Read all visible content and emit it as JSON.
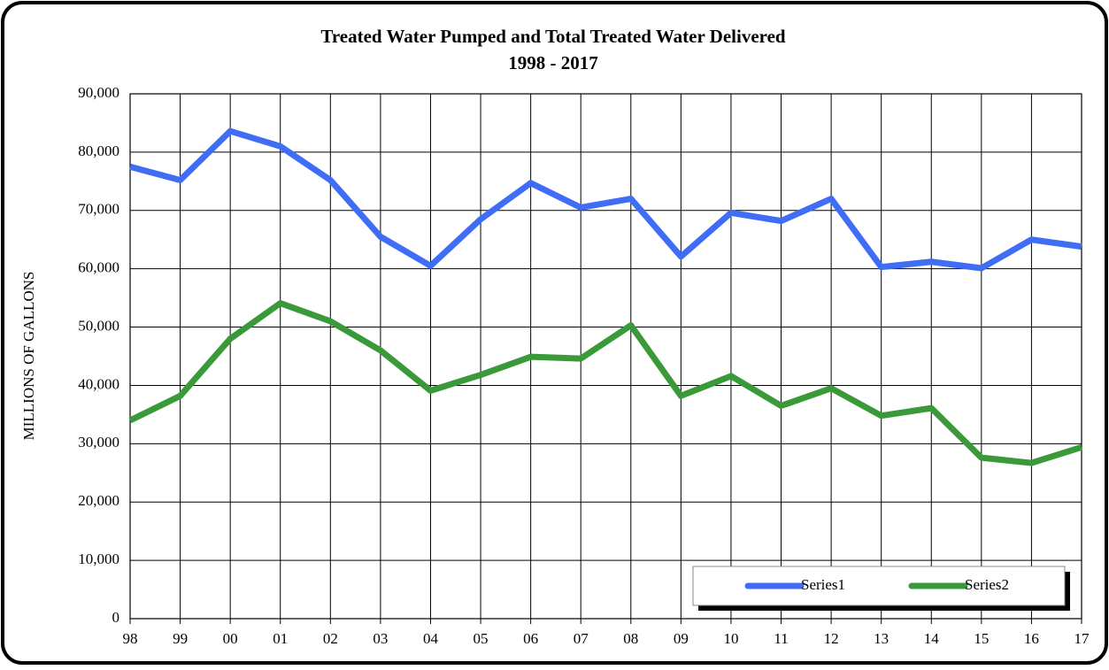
{
  "chart_data": {
    "type": "line",
    "title": "Treated Water Pumped and Total Treated Water Delivered",
    "subtitle": "1998 - 2017",
    "y_label": "MILLIONS OF GALLONS",
    "categories": [
      "98",
      "99",
      "00",
      "01",
      "02",
      "03",
      "04",
      "05",
      "06",
      "07",
      "08",
      "09",
      "10",
      "11",
      "12",
      "13",
      "14",
      "15",
      "16",
      "17"
    ],
    "series": [
      {
        "name": "Series1",
        "color": "#3f6df6",
        "values": [
          77500,
          75200,
          83600,
          81000,
          75200,
          65500,
          60500,
          68500,
          74700,
          70500,
          72000,
          62100,
          69600,
          68200,
          72000,
          60300,
          61200,
          60100,
          65000,
          63800
        ]
      },
      {
        "name": "Series2",
        "color": "#3a9a3a",
        "values": [
          34000,
          38200,
          48000,
          54100,
          51000,
          46000,
          39100,
          41800,
          44900,
          44600,
          50300,
          38200,
          41600,
          36500,
          39500,
          34800,
          36100,
          27600,
          26700,
          29400
        ]
      }
    ],
    "ylim": [
      0,
      90000
    ],
    "yticks": [
      0,
      {
        "value": 10000,
        "label": "10,000"
      },
      {
        "value": 20000,
        "label": "20,000"
      },
      {
        "value": 30000,
        "label": "30,000"
      },
      {
        "value": 40000,
        "label": "40,000"
      },
      {
        "value": 50000,
        "label": "50,000"
      },
      {
        "value": 60000,
        "label": "60,000"
      },
      {
        "value": 70000,
        "label": "70,000"
      },
      {
        "value": 80000,
        "label": "80,000"
      },
      {
        "value": 90000,
        "label": "90,000"
      }
    ],
    "grid": true,
    "legend": "bottom-right"
  }
}
